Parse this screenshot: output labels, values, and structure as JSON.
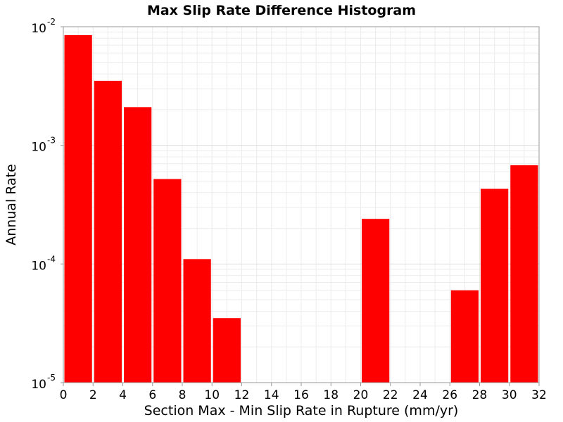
{
  "chart_data": {
    "type": "bar",
    "title": "Max Slip Rate Difference Histogram",
    "xlabel": "Section Max - Min Slip Rate in Rupture (mm/yr)",
    "ylabel": "Annual Rate",
    "xlim": [
      0,
      32
    ],
    "ylim": [
      1e-05,
      0.01
    ],
    "y_scale": "log",
    "grid": true,
    "legend": "none",
    "bar_color": "#ff0000",
    "bin_width": 2,
    "x_ticks": [
      "0",
      "2",
      "4",
      "6",
      "8",
      "10",
      "12",
      "14",
      "16",
      "18",
      "20",
      "22",
      "24",
      "26",
      "28",
      "30",
      "32"
    ],
    "y_ticks": [
      {
        "base": "10",
        "exp": "-5"
      },
      {
        "base": "10",
        "exp": "-4"
      },
      {
        "base": "10",
        "exp": "-3"
      },
      {
        "base": "10",
        "exp": "-2"
      }
    ],
    "bins": [
      {
        "x": 1,
        "value": 0.0085
      },
      {
        "x": 3,
        "value": 0.0035
      },
      {
        "x": 5,
        "value": 0.0021
      },
      {
        "x": 7,
        "value": 0.00052
      },
      {
        "x": 9,
        "value": 0.00011
      },
      {
        "x": 11,
        "value": 3.5e-05
      },
      {
        "x": 21,
        "value": 0.00024
      },
      {
        "x": 27,
        "value": 6e-05
      },
      {
        "x": 29,
        "value": 0.00043
      },
      {
        "x": 31,
        "value": 0.00068
      }
    ]
  }
}
